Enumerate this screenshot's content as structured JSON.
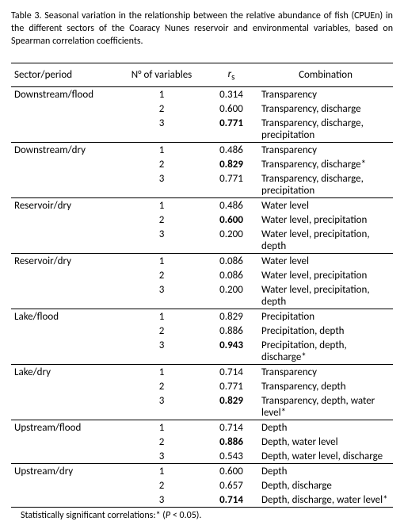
{
  "caption": "Table 3. Seasonal variation in the relationship between the relative abundance of fish (CPUEn) in the different sectors of the Coaracy Nunes reservoir and environmental variables, based on Spearman correlation coefficients.",
  "headers": {
    "sector": "Sector/period",
    "nvar": "N° of variables",
    "rs_html": "r",
    "rs_sub": "s",
    "combo": "Combination"
  },
  "groups": [
    {
      "label": "Downstream/flood",
      "rows": [
        {
          "n": "1",
          "rs": "0.314",
          "bold": false,
          "combo": "Transparency"
        },
        {
          "n": "2",
          "rs": "0.600",
          "bold": false,
          "combo": "Transparency, discharge"
        },
        {
          "n": "3",
          "rs": "0.771",
          "bold": true,
          "combo": "Transparency, discharge, precipitation"
        }
      ]
    },
    {
      "label": "Downstream/dry",
      "rows": [
        {
          "n": "1",
          "rs": "0.486",
          "bold": false,
          "combo": "Transparency"
        },
        {
          "n": "2",
          "rs": "0.829",
          "bold": true,
          "combo": "Transparency, discharge*"
        },
        {
          "n": "3",
          "rs": "0.771",
          "bold": false,
          "combo": "Transparency, discharge, precipitation"
        }
      ]
    },
    {
      "label": "Reservoir/dry",
      "rows": [
        {
          "n": "1",
          "rs": "0.486",
          "bold": false,
          "combo": "Water level"
        },
        {
          "n": "2",
          "rs": "0.600",
          "bold": true,
          "combo": "Water level, precipitation"
        },
        {
          "n": "3",
          "rs": "0.200",
          "bold": false,
          "combo": "Water level, precipitation, depth"
        }
      ]
    },
    {
      "label": "Reservoir/dry",
      "rows": [
        {
          "n": "1",
          "rs": "0.086",
          "bold": false,
          "combo": "Water level"
        },
        {
          "n": "2",
          "rs": "0.086",
          "bold": false,
          "combo": "Water level, precipitation"
        },
        {
          "n": "3",
          "rs": "0.200",
          "bold": false,
          "combo": "Water level, precipitation, depth"
        }
      ]
    },
    {
      "label": "Lake/flood",
      "rows": [
        {
          "n": "1",
          "rs": "0.829",
          "bold": false,
          "combo": "Precipitation"
        },
        {
          "n": "2",
          "rs": "0.886",
          "bold": false,
          "combo": "Precipitation, depth"
        },
        {
          "n": "3",
          "rs": "0.943",
          "bold": true,
          "combo": "Precipitation, depth, discharge*"
        }
      ]
    },
    {
      "label": "Lake/dry",
      "rows": [
        {
          "n": "1",
          "rs": "0.714",
          "bold": false,
          "combo": "Transparency"
        },
        {
          "n": "2",
          "rs": "0.771",
          "bold": false,
          "combo": "Transparency, depth"
        },
        {
          "n": "3",
          "rs": "0.829",
          "bold": true,
          "combo": "Transparency, depth, water level*"
        }
      ]
    },
    {
      "label": "Upstream/flood",
      "rows": [
        {
          "n": "1",
          "rs": "0.714",
          "bold": false,
          "combo": "Depth"
        },
        {
          "n": "2",
          "rs": "0.886",
          "bold": true,
          "combo": "Depth, water level"
        },
        {
          "n": "3",
          "rs": "0.543",
          "bold": false,
          "combo": "Depth, water level, discharge"
        }
      ]
    },
    {
      "label": "Upstream/dry",
      "rows": [
        {
          "n": "1",
          "rs": "0.600",
          "bold": false,
          "combo": "Depth"
        },
        {
          "n": "2",
          "rs": "0.657",
          "bold": false,
          "combo": "Depth, discharge"
        },
        {
          "n": "3",
          "rs": "0.714",
          "bold": true,
          "combo": "Depth, discharge, water level*"
        }
      ]
    }
  ],
  "footnote_prefix": "Statistically significant correlations:* (",
  "footnote_ital": "P",
  "footnote_suffix": " < 0.05)."
}
